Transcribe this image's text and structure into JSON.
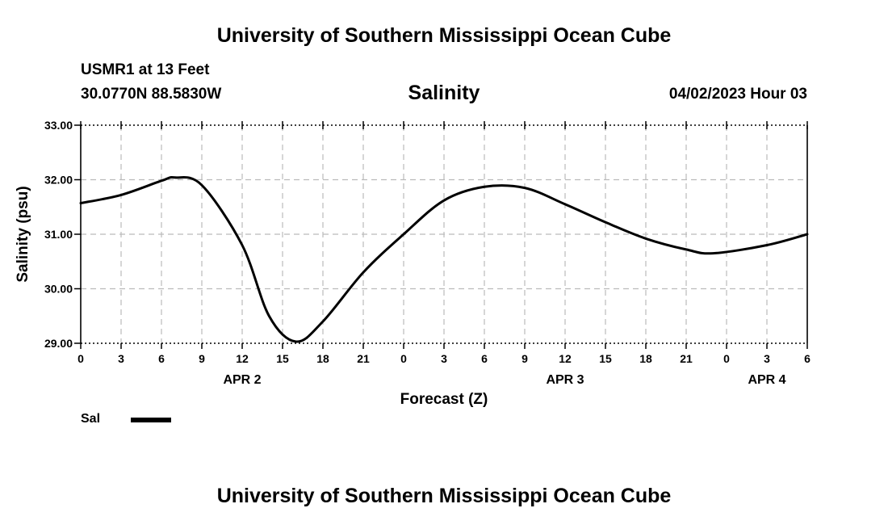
{
  "header": {
    "title": "University of Southern Mississippi Ocean Cube",
    "station": "USMR1 at 13 Feet",
    "coordinates": "30.0770N  88.5830W",
    "chart_title": "Salinity",
    "timestamp": "04/02/2023 Hour 03"
  },
  "footer": {
    "title": "University of Southern Mississippi Ocean Cube"
  },
  "legend": {
    "label": "Sal",
    "color": "#000000"
  },
  "chart_data": {
    "type": "line",
    "title": "Salinity",
    "xlabel": "Forecast (Z)",
    "ylabel": "Salinity (psu)",
    "ylim": [
      29.0,
      33.0
    ],
    "yticks": [
      "33.00",
      "32.00",
      "31.00",
      "30.00",
      "29.00"
    ],
    "xlim": [
      "2023-04-02T00:00Z",
      "2023-04-04T06:00Z"
    ],
    "xtick_labels": [
      "0",
      "3",
      "6",
      "9",
      "12",
      "15",
      "18",
      "21",
      "0",
      "3",
      "6",
      "9",
      "12",
      "15",
      "18",
      "21",
      "0",
      "3",
      "6"
    ],
    "date_labels": [
      {
        "label": "APR 2",
        "x": "2023-04-02T12:00Z"
      },
      {
        "label": "APR 3",
        "x": "2023-04-03T12:00Z"
      },
      {
        "label": "APR 4",
        "x": "2023-04-04T03:00Z"
      }
    ],
    "grid": true,
    "series": [
      {
        "name": "Sal",
        "color": "#000000",
        "x": [
          "2023-04-02T00:00Z",
          "2023-04-02T03:00Z",
          "2023-04-02T06:00Z",
          "2023-04-02T07:00Z",
          "2023-04-02T09:00Z",
          "2023-04-02T12:00Z",
          "2023-04-02T14:00Z",
          "2023-04-02T16:00Z",
          "2023-04-02T18:00Z",
          "2023-04-02T21:00Z",
          "2023-04-03T00:00Z",
          "2023-04-03T03:00Z",
          "2023-04-03T06:00Z",
          "2023-04-03T09:00Z",
          "2023-04-03T12:00Z",
          "2023-04-03T15:00Z",
          "2023-04-03T18:00Z",
          "2023-04-03T21:00Z",
          "2023-04-03T23:00Z",
          "2023-04-04T03:00Z",
          "2023-04-04T06:00Z"
        ],
        "values": [
          31.57,
          31.72,
          31.98,
          32.04,
          31.9,
          30.8,
          29.5,
          29.03,
          29.4,
          30.3,
          31.0,
          31.62,
          31.87,
          31.85,
          31.55,
          31.22,
          30.92,
          30.72,
          30.65,
          30.8,
          31.0
        ]
      }
    ]
  }
}
